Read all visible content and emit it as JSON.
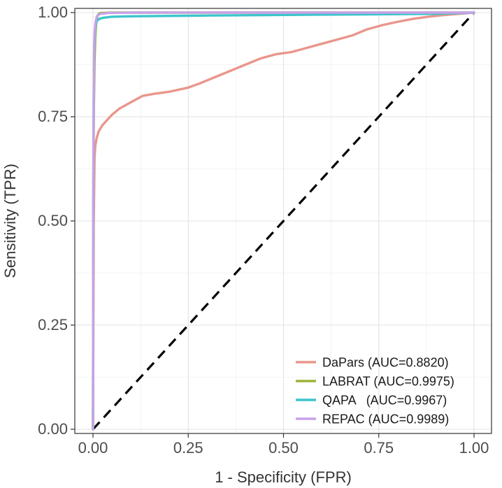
{
  "chart_data": {
    "type": "line",
    "title": "",
    "xlabel": "1 - Specificity (FPR)",
    "ylabel": "Sensitivity (TPR)",
    "xlim": [
      0,
      1
    ],
    "ylim": [
      0,
      1
    ],
    "x_ticks": [
      "0.00",
      "0.25",
      "0.50",
      "0.75",
      "1.00"
    ],
    "y_ticks": [
      "0.00",
      "0.25",
      "0.50",
      "0.75",
      "1.00"
    ],
    "grid": true,
    "legend_position": "bottom-right",
    "reference_line": {
      "style": "dashed",
      "color": "#000000",
      "x": [
        0,
        1
      ],
      "y": [
        0,
        1
      ]
    },
    "series": [
      {
        "name": "DaPars",
        "legend_label": "DaPars (AUC=0.8820)",
        "color": "#e9968c",
        "x": [
          0,
          0.002,
          0.004,
          0.006,
          0.01,
          0.015,
          0.025,
          0.04,
          0.05,
          0.07,
          0.1,
          0.13,
          0.16,
          0.2,
          0.25,
          0.28,
          0.32,
          0.36,
          0.4,
          0.44,
          0.48,
          0.52,
          0.56,
          0.6,
          0.64,
          0.68,
          0.72,
          0.76,
          0.8,
          0.84,
          0.88,
          0.92,
          0.96,
          1.0
        ],
        "y": [
          0,
          0.5,
          0.65,
          0.68,
          0.7,
          0.715,
          0.73,
          0.745,
          0.755,
          0.77,
          0.785,
          0.8,
          0.805,
          0.81,
          0.82,
          0.83,
          0.845,
          0.86,
          0.875,
          0.89,
          0.9,
          0.905,
          0.915,
          0.925,
          0.935,
          0.945,
          0.96,
          0.97,
          0.978,
          0.985,
          0.99,
          0.994,
          0.997,
          1.0
        ]
      },
      {
        "name": "LABRAT",
        "legend_label": "LABRAT (AUC=0.9975)",
        "color": "#9ab43c",
        "x": [
          0,
          0.001,
          0.002,
          0.004,
          0.006,
          0.008,
          0.01,
          0.012,
          0.015,
          0.02,
          0.05,
          0.1,
          0.5,
          1.0
        ],
        "y": [
          0,
          0.55,
          0.75,
          0.88,
          0.94,
          0.97,
          0.985,
          0.993,
          0.997,
          0.999,
          1.0,
          1.0,
          1.0,
          1.0
        ]
      },
      {
        "name": "QAPA",
        "legend_label": "QAPA   (AUC=0.9967)",
        "color": "#3cc5cc",
        "x": [
          0,
          0.001,
          0.002,
          0.003,
          0.005,
          0.007,
          0.01,
          0.015,
          0.02,
          0.03,
          0.05,
          0.1,
          0.3,
          0.6,
          0.9,
          1.0
        ],
        "y": [
          0,
          0.6,
          0.8,
          0.9,
          0.95,
          0.97,
          0.98,
          0.984,
          0.986,
          0.988,
          0.99,
          0.991,
          0.993,
          0.995,
          0.997,
          1.0
        ]
      },
      {
        "name": "REPAC",
        "legend_label": "REPAC (AUC=0.9989)",
        "color": "#c8a2e8",
        "x": [
          0,
          0.001,
          0.002,
          0.003,
          0.005,
          0.007,
          0.01,
          0.015,
          0.02,
          0.04,
          0.1,
          0.5,
          1.0
        ],
        "y": [
          0,
          0.62,
          0.82,
          0.92,
          0.96,
          0.978,
          0.99,
          0.995,
          0.997,
          0.999,
          1.0,
          1.0,
          1.0
        ]
      }
    ]
  }
}
